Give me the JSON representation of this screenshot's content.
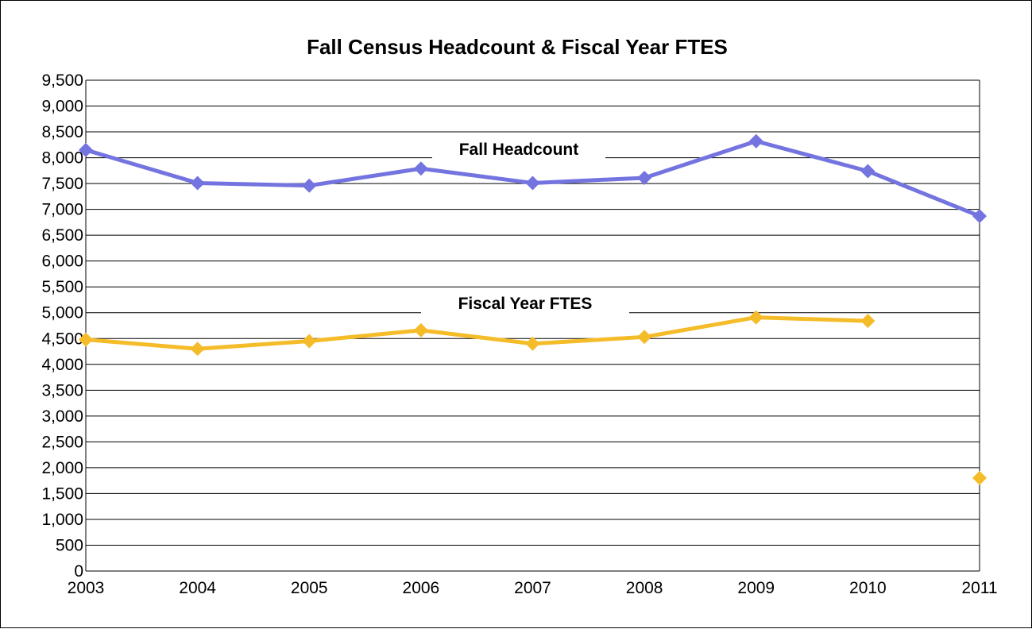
{
  "chart_data": {
    "type": "line",
    "title": "Fall Census Headcount & Fiscal Year FTES",
    "xlabel": "",
    "ylabel": "",
    "x": [
      "2003",
      "2004",
      "2005",
      "2006",
      "2007",
      "2008",
      "2009",
      "2010",
      "2011"
    ],
    "y_ticks": [
      "0",
      "500",
      "1,000",
      "1,500",
      "2,000",
      "2,500",
      "3,000",
      "3,500",
      "4,000",
      "4,500",
      "5,000",
      "5,500",
      "6,000",
      "6,500",
      "7,000",
      "7,500",
      "8,000",
      "8,500",
      "9,000",
      "9,500"
    ],
    "ylim": [
      0,
      9500
    ],
    "y_step": 500,
    "grid": true,
    "legend": "none",
    "series": [
      {
        "name": "Fall Headcount",
        "color": "#7474e0",
        "values": [
          8150,
          7510,
          7460,
          7790,
          7510,
          7610,
          8320,
          7740,
          6870
        ]
      },
      {
        "name": "Fiscal Year FTES",
        "color": "#f5bc2a",
        "values": [
          4480,
          4300,
          4450,
          4660,
          4400,
          4530,
          4910,
          4840,
          null
        ],
        "extra_points": [
          {
            "x": "2011",
            "y": 1800
          }
        ]
      }
    ]
  }
}
